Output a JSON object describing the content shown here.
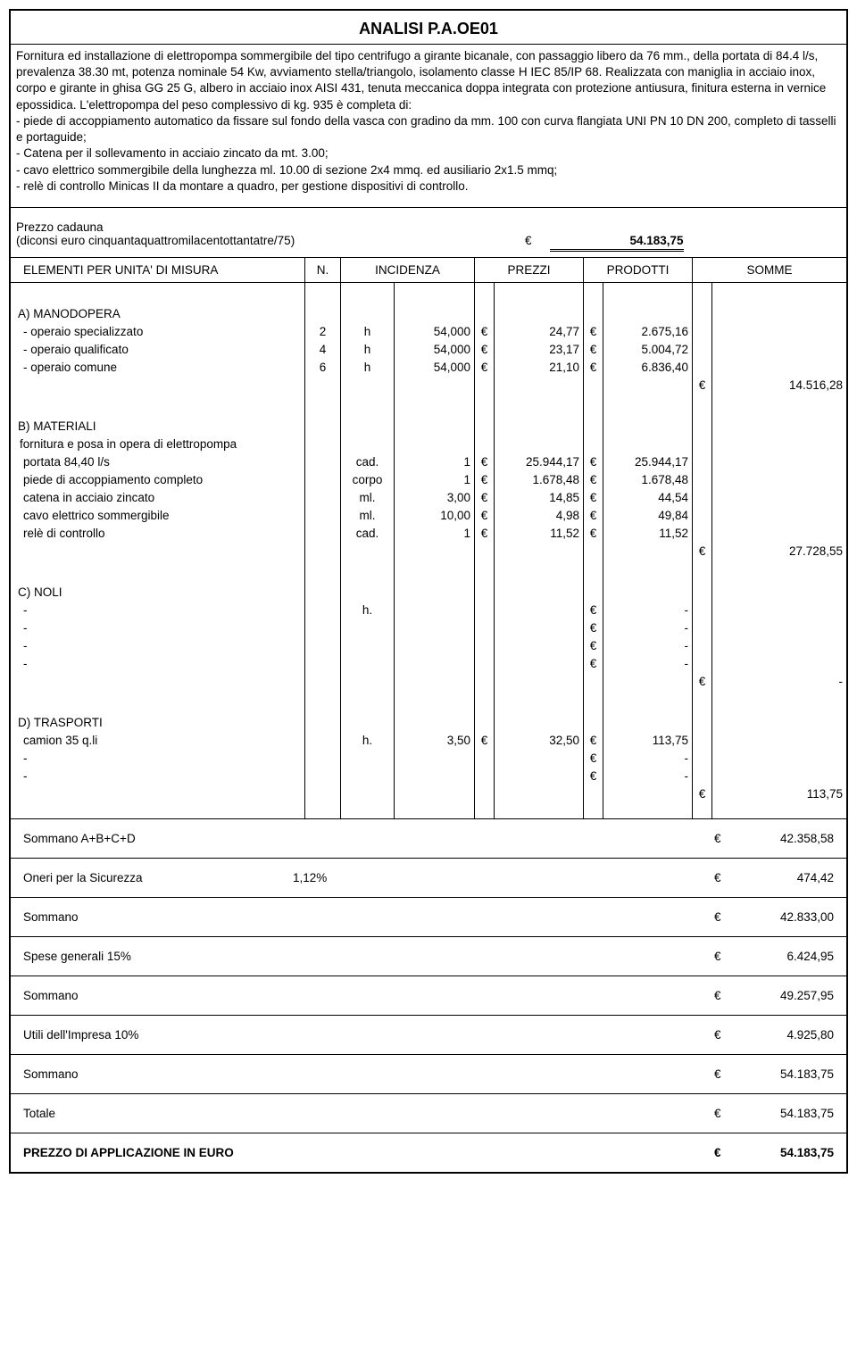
{
  "title": "ANALISI   P.A.OE01",
  "description": "Fornitura ed installazione di elettropompa  sommergibile del tipo centrifugo a girante bicanale, con passaggio libero da 76 mm., della portata di 84.4 l/s, prevalenza 38.30 mt, potenza nominale 54 Kw, avviamento stella/triangolo, isolamento classe H IEC 85/IP 68. Realizzata con maniglia in acciaio inox, corpo  e girante in ghisa GG 25 G, albero in acciaio inox AISI 431, tenuta meccanica doppa integrata con protezione antiusura, finitura esterna in vernice epossidica. L'elettropompa del peso complessivo di kg. 935 è completa di:\n- piede di accoppiamento automatico da fissare sul fondo della vasca con gradino da mm. 100 con curva flangiata UNI PN 10 DN 200, completo di tasselli e portaguide;\n- Catena per il sollevamento in acciaio zincato da mt. 3.00;\n- cavo elettrico sommergibile della lunghezza ml. 10.00 di sezione 2x4 mmq. ed ausiliario 2x1.5 mmq;\n- relè di controllo Minicas II da montare a quadro, per gestione dispositivi di controllo.",
  "priceHeader": {
    "line1": "Prezzo cadauna",
    "line2": "(diconsi euro cinquantaquattromilacentottantatre/75)",
    "euro": "€",
    "value": "54.183,75"
  },
  "columns": {
    "desc": "ELEMENTI PER UNITA' DI MISURA",
    "n": "N.",
    "inc": "INCIDENZA",
    "prz": "PREZZI",
    "prod": "PRODOTTI",
    "som": "SOMME"
  },
  "sectionA": {
    "title": "A) MANODOPERA",
    "rows": [
      {
        "desc": "- operaio specializzato",
        "n": "2",
        "unit": "h",
        "inc": "54,000",
        "e1": "€",
        "prz": "24,77",
        "e2": "€",
        "prod": "2.675,16"
      },
      {
        "desc": "- operaio qualificato",
        "n": "4",
        "unit": "h",
        "inc": "54,000",
        "e1": "€",
        "prz": "23,17",
        "e2": "€",
        "prod": "5.004,72"
      },
      {
        "desc": "- operaio comune",
        "n": "6",
        "unit": "h",
        "inc": "54,000",
        "e1": "€",
        "prz": "21,10",
        "e2": "€",
        "prod": "6.836,40"
      }
    ],
    "sumE": "€",
    "sum": "14.516,28"
  },
  "sectionB": {
    "title": "B) MATERIALI",
    "sub": " fornitura e posa in opera di elettropompa",
    "rows": [
      {
        "desc": " portata 84,40 l/s",
        "n": "",
        "unit": "cad.",
        "inc": "1",
        "e1": "€",
        "prz": "25.944,17",
        "e2": "€",
        "prod": "25.944,17"
      },
      {
        "desc": " piede di accoppiamento completo",
        "n": "",
        "unit": "corpo",
        "inc": "1",
        "e1": "€",
        "prz": "1.678,48",
        "e2": "€",
        "prod": "1.678,48"
      },
      {
        "desc": " catena in acciaio zincato",
        "n": "",
        "unit": "ml.",
        "inc": "3,00",
        "e1": "€",
        "prz": "14,85",
        "e2": "€",
        "prod": "44,54"
      },
      {
        "desc": " cavo elettrico sommergibile",
        "n": "",
        "unit": "ml.",
        "inc": "10,00",
        "e1": "€",
        "prz": "4,98",
        "e2": "€",
        "prod": "49,84"
      },
      {
        "desc": " relè di controllo",
        "n": "",
        "unit": "cad.",
        "inc": "1",
        "e1": "€",
        "prz": "11,52",
        "e2": "€",
        "prod": "11,52"
      }
    ],
    "sumE": "€",
    "sum": "27.728,55"
  },
  "sectionC": {
    "title": "C) NOLI",
    "rows": [
      {
        "desc": " -",
        "n": "",
        "unit": "h.",
        "inc": "",
        "e1": "",
        "prz": "",
        "e2": "€",
        "prod": "-"
      },
      {
        "desc": " -",
        "n": "",
        "unit": "",
        "inc": "",
        "e1": "",
        "prz": "",
        "e2": "€",
        "prod": "-"
      },
      {
        "desc": " -",
        "n": "",
        "unit": "",
        "inc": "",
        "e1": "",
        "prz": "",
        "e2": "€",
        "prod": "-"
      },
      {
        "desc": " -",
        "n": "",
        "unit": "",
        "inc": "",
        "e1": "",
        "prz": "",
        "e2": "€",
        "prod": "-"
      }
    ],
    "sumE": "€",
    "sum": "-"
  },
  "sectionD": {
    "title": "D) TRASPORTI",
    "rows": [
      {
        "desc": " camion 35 q.li",
        "n": "",
        "unit": "h.",
        "inc": "3,50",
        "e1": "€",
        "prz": "32,50",
        "e2": "€",
        "prod": "113,75"
      },
      {
        "desc": " -",
        "n": "",
        "unit": "",
        "inc": "",
        "e1": "",
        "prz": "",
        "e2": "€",
        "prod": "-"
      },
      {
        "desc": " -",
        "n": "",
        "unit": "",
        "inc": "",
        "e1": "",
        "prz": "",
        "e2": "€",
        "prod": "-"
      }
    ],
    "sumE": "€",
    "sum": "113,75"
  },
  "totals": [
    {
      "label": "Sommano  A+B+C+D",
      "pct": "",
      "eur": "€",
      "val": "42.358,58",
      "bold": false
    },
    {
      "label": "Oneri per la Sicurezza",
      "pct": "1,12%",
      "eur": "€",
      "val": "474,42",
      "bold": false
    },
    {
      "label": "Sommano",
      "pct": "",
      "eur": "€",
      "val": "42.833,00",
      "bold": false
    },
    {
      "label": "Spese generali 15%",
      "pct": "",
      "eur": "€",
      "val": "6.424,95",
      "bold": false
    },
    {
      "label": "Sommano",
      "pct": "",
      "eur": "€",
      "val": "49.257,95",
      "bold": false
    },
    {
      "label": "Utili dell'Impresa 10%",
      "pct": "",
      "eur": "€",
      "val": "4.925,80",
      "bold": false
    },
    {
      "label": "Sommano",
      "pct": "",
      "eur": "€",
      "val": "54.183,75",
      "bold": false
    },
    {
      "label": "Totale",
      "pct": "",
      "eur": "€",
      "val": "54.183,75",
      "bold": false
    },
    {
      "label": "PREZZO DI APPLICAZIONE IN EURO",
      "pct": "",
      "eur": "€",
      "val": "54.183,75",
      "bold": true
    }
  ]
}
